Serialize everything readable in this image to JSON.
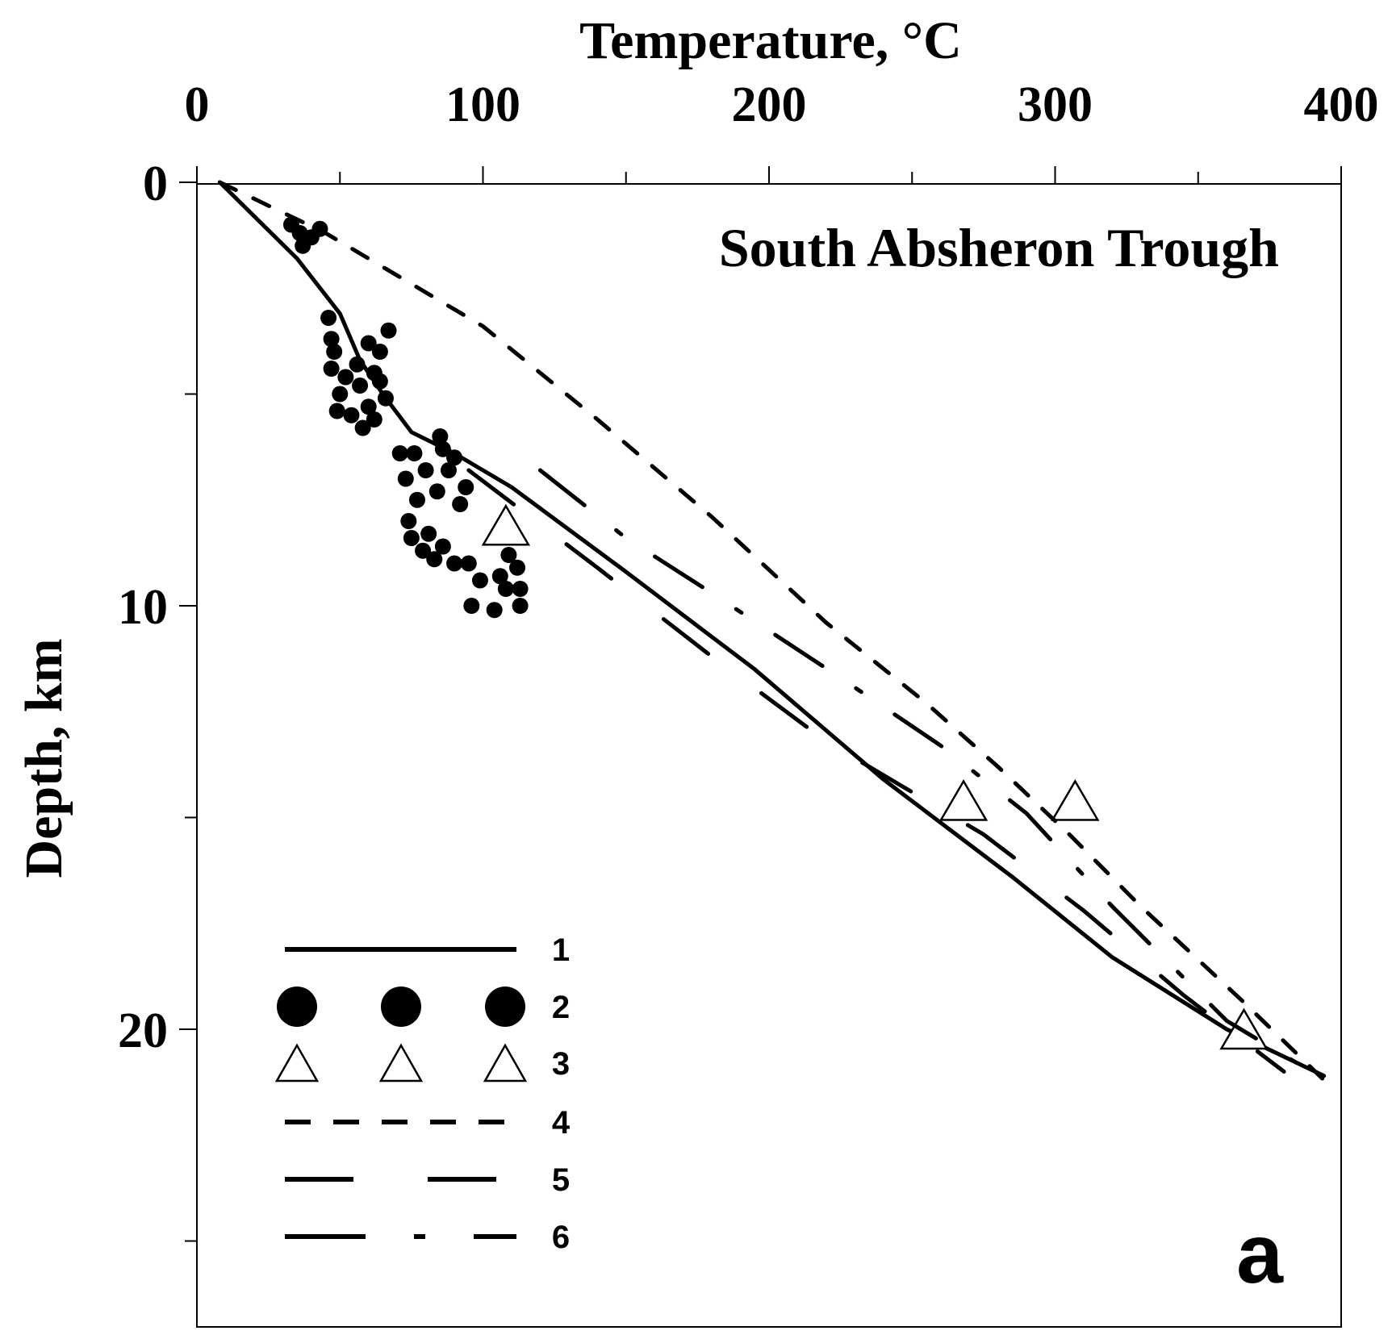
{
  "chart_data": {
    "type": "scatter",
    "title": "South Absheron Trough",
    "panel_label": "a",
    "xlabel": "Temperature, °C",
    "ylabel": "Depth, km",
    "xlim": [
      0,
      400
    ],
    "ylim": [
      0,
      27
    ],
    "y_inverted": true,
    "x_axis_position": "top",
    "x_ticks": [
      0,
      100,
      200,
      300,
      400
    ],
    "x_minor_ticks": [
      50,
      150,
      250,
      350
    ],
    "y_ticks": [
      0,
      10,
      20
    ],
    "y_minor_ticks": [
      5,
      15,
      25
    ],
    "grid": false,
    "legend_position": "bottom-left",
    "legend": [
      "1",
      "2",
      "3",
      "4",
      "5",
      "6"
    ],
    "series": [
      {
        "name": "1",
        "style": "solid",
        "points": [
          [
            8,
            0
          ],
          [
            20,
            0.8
          ],
          [
            35,
            1.8
          ],
          [
            50,
            3.1
          ],
          [
            57,
            4.2
          ],
          [
            65,
            5
          ],
          [
            75,
            5.9
          ],
          [
            90,
            6.4
          ],
          [
            110,
            7.2
          ],
          [
            150,
            9.2
          ],
          [
            195,
            11.5
          ],
          [
            240,
            14.1
          ],
          [
            285,
            16.4
          ],
          [
            320,
            18.3
          ],
          [
            360,
            20
          ],
          [
            394,
            21.1
          ]
        ]
      },
      {
        "name": "2",
        "style": "filled-circle",
        "points": [
          [
            33,
            1
          ],
          [
            36,
            1.2
          ],
          [
            40,
            1.3
          ],
          [
            43,
            1.1
          ],
          [
            37,
            1.5
          ],
          [
            46,
            3.2
          ],
          [
            47,
            3.7
          ],
          [
            48,
            4
          ],
          [
            47,
            4.4
          ],
          [
            52,
            4.6
          ],
          [
            50,
            5
          ],
          [
            49,
            5.4
          ],
          [
            54,
            5.5
          ],
          [
            57,
            4.8
          ],
          [
            60,
            5.3
          ],
          [
            62,
            4.5
          ],
          [
            64,
            4.7
          ],
          [
            66,
            5.1
          ],
          [
            67,
            3.5
          ],
          [
            64,
            4
          ],
          [
            60,
            3.8
          ],
          [
            56,
            4.3
          ],
          [
            58,
            5.8
          ],
          [
            62,
            5.6
          ],
          [
            71,
            6.4
          ],
          [
            73,
            7
          ],
          [
            76,
            6.4
          ],
          [
            80,
            6.8
          ],
          [
            84,
            7.3
          ],
          [
            88,
            6.8
          ],
          [
            90,
            6.5
          ],
          [
            94,
            7.2
          ],
          [
            92,
            7.6
          ],
          [
            77,
            7.5
          ],
          [
            74,
            8
          ],
          [
            75,
            8.4
          ],
          [
            79,
            8.7
          ],
          [
            81,
            8.3
          ],
          [
            86,
            8.6
          ],
          [
            83,
            8.9
          ],
          [
            90,
            9
          ],
          [
            95,
            9
          ],
          [
            99,
            9.4
          ],
          [
            106,
            9.3
          ],
          [
            108,
            9.6
          ],
          [
            109,
            8.8
          ],
          [
            112,
            9.1
          ],
          [
            113,
            9.6
          ],
          [
            113,
            10
          ],
          [
            104,
            10.1
          ],
          [
            96,
            10
          ],
          [
            85,
            6
          ],
          [
            86,
            6.3
          ]
        ]
      },
      {
        "name": "3",
        "style": "open-triangle",
        "points": [
          [
            108,
            8.1
          ],
          [
            268,
            14.6
          ],
          [
            307,
            14.6
          ],
          [
            366,
            20
          ]
        ]
      },
      {
        "name": "4",
        "style": "dashed",
        "points": [
          [
            8,
            0
          ],
          [
            45,
            1.2
          ],
          [
            100,
            3.4
          ],
          [
            140,
            5.6
          ],
          [
            180,
            7.9
          ],
          [
            220,
            10.4
          ],
          [
            255,
            12.3
          ],
          [
            280,
            13.8
          ],
          [
            305,
            15.4
          ],
          [
            330,
            17.1
          ],
          [
            365,
            19.3
          ],
          [
            394,
            21.2
          ]
        ]
      },
      {
        "name": "5",
        "style": "long-dash",
        "points": [
          [
            95,
            6.8
          ],
          [
            140,
            9.1
          ],
          [
            180,
            11.2
          ],
          [
            220,
            13.2
          ],
          [
            275,
            15.4
          ],
          [
            310,
            17.2
          ],
          [
            345,
            19.2
          ],
          [
            380,
            21
          ]
        ]
      },
      {
        "name": "6",
        "style": "dash-dot",
        "points": [
          [
            120,
            6.8
          ],
          [
            150,
            8.4
          ],
          [
            180,
            9.7
          ],
          [
            225,
            11.7
          ],
          [
            260,
            13.3
          ],
          [
            290,
            14.9
          ],
          [
            320,
            17.1
          ],
          [
            360,
            19.8
          ],
          [
            392,
            21.1
          ]
        ]
      }
    ]
  }
}
